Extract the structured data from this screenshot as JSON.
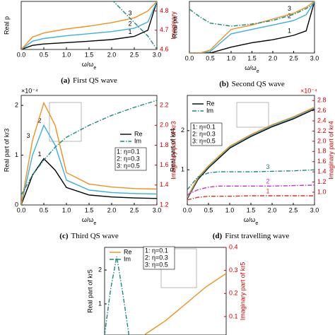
{
  "chart_data": [
    {
      "type": "line",
      "caption_tag": "(a)",
      "caption": "First QS wave",
      "xlabel": "ω/ω",
      "xlabel_sub": "e",
      "ylabel": "Real p",
      "y2label": "Imaginary",
      "x": [
        0,
        0.25,
        0.5,
        1,
        1.5,
        2,
        2.5,
        2.8,
        3
      ],
      "xlim": [
        0,
        3
      ],
      "xticks": [
        {
          "value": 0,
          "label": "0.0"
        },
        0.5,
        {
          "value": 1,
          "label": "1.0"
        },
        1.5,
        {
          "value": 2,
          "label": "2.0"
        },
        2.5,
        {
          "value": 3,
          "label": "3.0"
        }
      ],
      "ylim": [
        0,
        3.5
      ],
      "y2lim": [
        4.6,
        4.85
      ],
      "y2ticks": [
        4.6,
        4.7,
        4.8
      ],
      "series": [
        {
          "label": "1",
          "color": "#000000",
          "style": "solid",
          "values": [
            0,
            0.3,
            0.4,
            0.5,
            0.6,
            0.72,
            0.95,
            1.4,
            3.5
          ]
        },
        {
          "label": "2",
          "color": "#3ab0e0",
          "style": "solid",
          "values": [
            0,
            0.6,
            0.8,
            1.0,
            1.15,
            1.3,
            1.55,
            2.0,
            3.5
          ]
        },
        {
          "label": "3",
          "color": "#f0901c",
          "style": "solid",
          "values": [
            0,
            0.9,
            1.2,
            1.5,
            1.7,
            1.95,
            2.3,
            2.8,
            3.5
          ]
        },
        {
          "color": "#1a8a80",
          "style": "dashdot",
          "axis": "y2",
          "values": [
            null,
            null,
            null,
            null,
            null,
            4.86,
            4.74,
            4.67,
            4.6
          ]
        }
      ]
    },
    {
      "type": "line",
      "caption_tag": "(b)",
      "caption": "Second QS wave",
      "xlabel": "ω/ω",
      "xlabel_sub": "e",
      "ylabel": "Real pa",
      "x": [
        0,
        0.25,
        0.5,
        1,
        1.5,
        2,
        2.5,
        2.8,
        3
      ],
      "xlim": [
        0,
        3
      ],
      "xticks": [
        {
          "value": 0,
          "label": "0.0"
        },
        0.5,
        {
          "value": 1,
          "label": "1.0"
        },
        1.5,
        {
          "value": 2,
          "label": "2.0"
        },
        2.5,
        {
          "value": 3,
          "label": "3.0"
        }
      ],
      "ylim": [
        0,
        3.5
      ],
      "y2lim": [
        0,
        1
      ],
      "series": [
        {
          "label": "1",
          "color": "#000000",
          "style": "solid",
          "values": [
            0,
            0,
            0,
            0.4,
            0.7,
            0.9,
            1.2,
            1.5,
            3.5
          ]
        },
        {
          "label": "2",
          "color": "#3ab0e0",
          "style": "solid",
          "values": [
            0,
            0,
            0.1,
            1.3,
            1.6,
            1.9,
            2.2,
            2.6,
            3.5
          ]
        },
        {
          "label": "3",
          "color": "#f0901c",
          "style": "solid",
          "values": [
            0,
            0,
            0.2,
            1.6,
            1.9,
            2.3,
            2.7,
            3.1,
            3.5
          ]
        },
        {
          "color": "#1a8a80",
          "style": "dashdot",
          "axis": "y2",
          "values": [
            0.85,
            0.7,
            0.58,
            0.52,
            0.56,
            0.63,
            0.75,
            0.86,
            0.96
          ]
        }
      ]
    },
    {
      "type": "line",
      "caption_tag": "(c)",
      "caption": "Third QS wave",
      "xlabel": "ω/ω",
      "xlabel_sub": "e",
      "ylabel": "Real part of kr3",
      "y2label": "Imaginary part of kr3",
      "multiplier": "×10⁻⁴",
      "x": [
        0,
        0.25,
        0.5,
        0.75,
        1,
        1.5,
        2,
        2.5,
        3
      ],
      "xlim": [
        0,
        3
      ],
      "xticks": [
        {
          "value": 0,
          "label": "0.0"
        },
        0.5,
        {
          "value": 1,
          "label": "1.0"
        },
        1.5,
        {
          "value": 2,
          "label": "2.0"
        },
        2.5,
        {
          "value": 3,
          "label": "3.0"
        }
      ],
      "ylim": [
        0,
        2.2
      ],
      "yticks": [
        0,
        1,
        2
      ],
      "y2lim": [
        1.2,
        2.3
      ],
      "y2ticks": [
        1.2,
        1.4,
        1.6,
        1.8,
        {
          "value": 2,
          "label": "2.0"
        },
        2.2
      ],
      "eta_labels": [
        "1: η=0.1",
        "2: η=0.3",
        "3: η=0.5"
      ],
      "series": [
        {
          "name": "Re",
          "label": "1",
          "color": "#000000",
          "style": "solid",
          "values": [
            0,
            0.6,
            0.93,
            0.7,
            0.35,
            0.2,
            0.16,
            0.14,
            0.13
          ]
        },
        {
          "label": "2",
          "color": "#3ab0e0",
          "style": "solid",
          "values": [
            0,
            1.0,
            1.6,
            1.2,
            0.5,
            0.3,
            0.25,
            0.23,
            0.22
          ]
        },
        {
          "label": "3",
          "color": "#f0901c",
          "style": "solid",
          "values": [
            0,
            1.3,
            2.05,
            1.6,
            0.65,
            0.42,
            0.36,
            0.33,
            0.32
          ]
        },
        {
          "name": "Im",
          "color": "#1a8a80",
          "style": "dashdot",
          "axis": "y2",
          "values": [
            1.3,
            1.5,
            1.65,
            1.78,
            1.88,
            2.0,
            2.1,
            2.18,
            2.25
          ]
        }
      ]
    },
    {
      "type": "line",
      "caption_tag": "(d)",
      "caption": "First travelling wave",
      "xlabel": "ω/ω",
      "xlabel_sub": "e",
      "ylabel": "Real part of kr4",
      "y2label": "Imaginary part of kr4",
      "multiplier": "×10⁻⁴",
      "x": [
        0,
        0.25,
        0.5,
        0.75,
        1,
        1.5,
        2,
        2.5,
        3
      ],
      "xlim": [
        0,
        3
      ],
      "xticks": [
        {
          "value": 0,
          "label": "0.0"
        },
        0.5,
        {
          "value": 1,
          "label": "1.0"
        },
        1.5,
        {
          "value": 2,
          "label": "2.0"
        },
        2.5,
        {
          "value": 3,
          "label": "3.0"
        }
      ],
      "ylim": [
        0.1,
        2.9
      ],
      "yticks": [
        1,
        2
      ],
      "y2lim": [
        0.75,
        2.9
      ],
      "y2ticks": [
        {
          "value": 1,
          "label": "1.0"
        },
        1.2,
        1.4,
        1.6,
        1.8,
        {
          "value": 2,
          "label": "2.0"
        },
        2.2,
        2.4,
        2.6,
        2.8
      ],
      "eta_labels": [
        "1: η=0.1",
        "2: η=0.3",
        "3: η=0.5"
      ],
      "series": [
        {
          "name": "Re",
          "color": "#000000",
          "style": "solid",
          "values": [
            0.26,
            0.75,
            1.05,
            1.3,
            1.55,
            1.85,
            2.1,
            2.3,
            2.55
          ]
        },
        {
          "color": "#3ab0e0",
          "style": "solid",
          "values": [
            0.28,
            0.78,
            1.08,
            1.33,
            1.58,
            1.88,
            2.13,
            2.33,
            2.58
          ]
        },
        {
          "color": "#f0901c",
          "style": "solid",
          "values": [
            0.3,
            0.8,
            1.1,
            1.35,
            1.6,
            1.9,
            2.15,
            2.35,
            2.6
          ]
        },
        {
          "label": "1",
          "color": "#e03030",
          "style": "dashdot",
          "axis": "y2",
          "values": [
            0.85,
            0.9,
            0.92,
            0.92,
            0.92,
            0.93,
            0.93,
            0.93,
            0.93
          ]
        },
        {
          "label": "2",
          "color": "#c030d0",
          "style": "dashdot",
          "axis": "y2",
          "values": [
            0.95,
            1.05,
            1.1,
            1.12,
            1.12,
            1.12,
            1.12,
            1.13,
            1.14
          ]
        },
        {
          "name": "Im",
          "label": "3",
          "color": "#1a8a80",
          "style": "dashdot",
          "axis": "y2",
          "values": [
            1.05,
            1.3,
            1.38,
            1.4,
            1.4,
            1.4,
            1.41,
            1.42,
            1.44
          ]
        }
      ]
    },
    {
      "type": "line",
      "ylabel": "Real part of kr5",
      "y2label": "Imaginary part of kr5",
      "x": [
        0,
        0.15,
        0.3,
        0.45,
        0.6,
        1,
        1.5,
        2,
        2.5,
        3
      ],
      "xlim": [
        0,
        3
      ],
      "ylim": [
        0.08,
        2.67
      ],
      "yticks": [
        1,
        2
      ],
      "y2lim": [
        0.02,
        0.4
      ],
      "y2ticks": [
        0.1,
        0.2,
        0.3,
        0.4
      ],
      "eta_labels": [
        "1: η=0.1",
        "2: η=0.3",
        "3: η=0.5"
      ],
      "series": [
        {
          "name": "Re",
          "color": "#f0901c",
          "style": "solid",
          "values": [
            null,
            null,
            null,
            null,
            null,
            0.1,
            0.5,
            1.0,
            1.5,
            1.9
          ]
        },
        {
          "name": "Im",
          "color": "#1a8a80",
          "style": "dashdot",
          "axis": "y2",
          "values": [
            0.02,
            0.22,
            0.36,
            0.2,
            0.02,
            null,
            null,
            null,
            null,
            null
          ]
        }
      ]
    }
  ]
}
